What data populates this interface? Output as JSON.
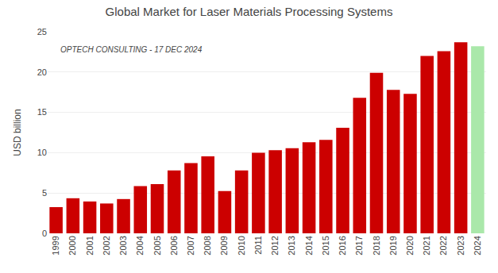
{
  "chart_data": {
    "type": "bar",
    "title": "Global Market for Laser Materials Processing Systems",
    "ylabel": "USD billion",
    "annotations": [
      "OPTECH CONSULTING - 17 DEC 2024"
    ],
    "categories": [
      "1999",
      "2000",
      "2001",
      "2002",
      "2003",
      "2004",
      "2005",
      "2006",
      "2007",
      "2008",
      "2009",
      "2010",
      "2011",
      "2012",
      "2013",
      "2014",
      "2015",
      "2016",
      "2017",
      "2018",
      "2019",
      "2020",
      "2021",
      "2022",
      "2023",
      "2024"
    ],
    "values": [
      3.25,
      4.35,
      3.95,
      3.7,
      4.25,
      5.85,
      6.1,
      7.8,
      8.7,
      9.55,
      5.25,
      7.8,
      10.0,
      10.3,
      10.55,
      11.3,
      11.6,
      13.1,
      16.8,
      19.9,
      17.8,
      17.3,
      22.0,
      22.6,
      23.7,
      23.2
    ],
    "colors": [
      "#cc0000",
      "#cc0000",
      "#cc0000",
      "#cc0000",
      "#cc0000",
      "#cc0000",
      "#cc0000",
      "#cc0000",
      "#cc0000",
      "#cc0000",
      "#cc0000",
      "#cc0000",
      "#cc0000",
      "#cc0000",
      "#cc0000",
      "#cc0000",
      "#cc0000",
      "#cc0000",
      "#cc0000",
      "#cc0000",
      "#cc0000",
      "#cc0000",
      "#cc0000",
      "#cc0000",
      "#cc0000",
      "#aae8aa"
    ],
    "ylim": [
      0,
      25
    ],
    "yticks": [
      0,
      5,
      10,
      15,
      20,
      25
    ],
    "grid": true
  }
}
